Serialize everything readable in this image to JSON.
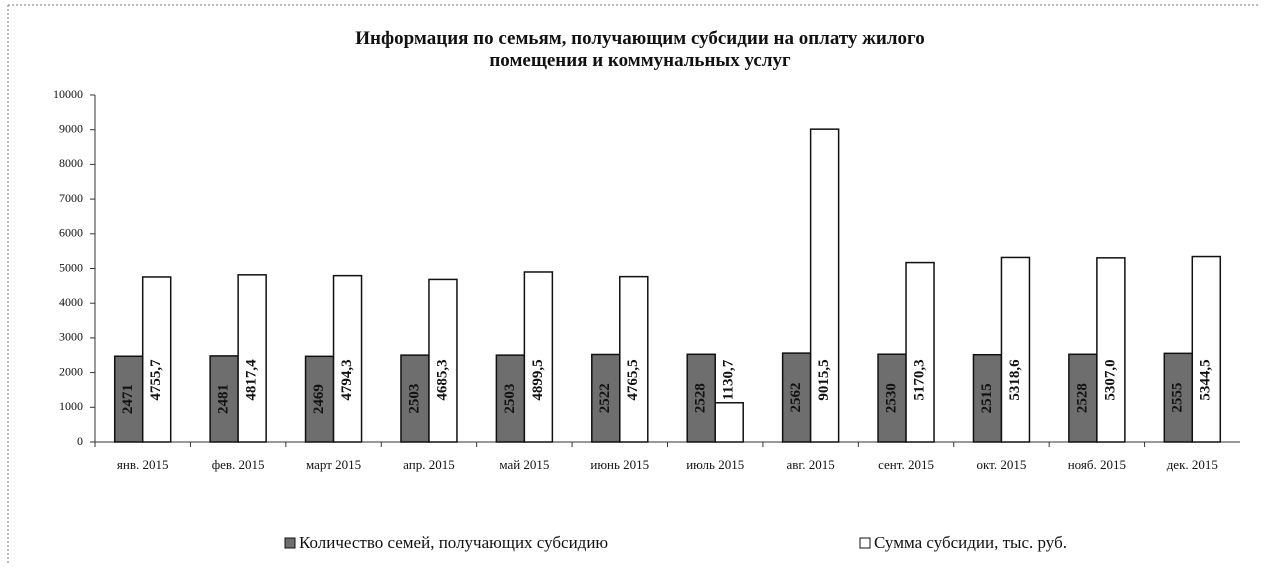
{
  "chart_data": {
    "type": "bar",
    "title": "Информация по семьям, получающим субсидии на оплату жилого помещения и коммунальных услуг",
    "categories": [
      "янв. 2015",
      "фев. 2015",
      "март 2015",
      "апр. 2015",
      "май 2015",
      "июнь 2015",
      "июль 2015",
      "авг. 2015",
      "сент. 2015",
      "окт. 2015",
      "нояб. 2015",
      "дек. 2015"
    ],
    "series": [
      {
        "name": "Количество семей, получающих субсидию",
        "color": "#6e6e6e",
        "values": [
          2471,
          2481,
          2469,
          2503,
          2503,
          2522,
          2528,
          2562,
          2530,
          2515,
          2528,
          2555
        ]
      },
      {
        "name": "Сумма субсидии, тыс. руб.",
        "color": "#ffffff",
        "values": [
          4755.7,
          4817.4,
          4794.3,
          4685.3,
          4899.5,
          4765.5,
          1130.7,
          9015.5,
          5170.3,
          5318.6,
          5307.0,
          5344.5
        ],
        "value_labels": [
          "4755,7",
          "4817,4",
          "4794,3",
          "4685,3",
          "4899,5",
          "4765,5",
          "1130,7",
          "9015,5",
          "5170,3",
          "5318,6",
          "5307,0",
          "5344,5"
        ]
      }
    ],
    "ylim": [
      0,
      10000
    ],
    "yticks": [
      0,
      1000,
      2000,
      3000,
      4000,
      5000,
      6000,
      7000,
      8000,
      9000,
      10000
    ],
    "legend": "bottom"
  }
}
